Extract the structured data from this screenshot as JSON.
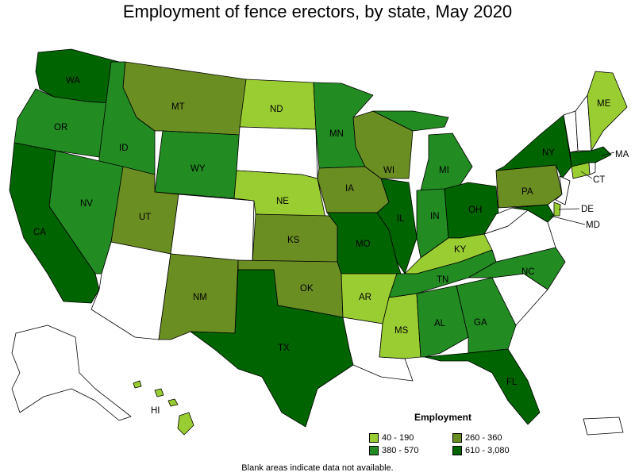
{
  "title": "Employment of fence erectors, by state, May 2020",
  "legend": {
    "title": "Employment",
    "items": [
      {
        "label": "40 - 190",
        "color": "#9acd32"
      },
      {
        "label": "260 - 360",
        "color": "#6b8e23"
      },
      {
        "label": "380 - 570",
        "color": "#228b22"
      },
      {
        "label": "610 - 3,080",
        "color": "#006400"
      }
    ]
  },
  "colors": {
    "no_data": "#ffffff",
    "c1": "#9acd32",
    "c2": "#6b8e23",
    "c3": "#228b22",
    "c4": "#006400"
  },
  "states": {
    "WA": "WA",
    "OR": "OR",
    "CA": "CA",
    "ID": "ID",
    "NV": "NV",
    "MT": "MT",
    "WY": "WY",
    "UT": "UT",
    "NM": "NM",
    "ND": "ND",
    "NE": "NE",
    "KS": "KS",
    "OK": "OK",
    "TX": "TX",
    "MN": "MN",
    "IA": "IA",
    "MO": "MO",
    "AR": "AR",
    "WI": "WI",
    "IL": "IL",
    "MS": "MS",
    "MI": "MI",
    "IN": "IN",
    "KY": "KY",
    "TN": "TN",
    "AL": "AL",
    "GA": "GA",
    "FL": "FL",
    "OH": "OH",
    "NC": "NC",
    "PA": "PA",
    "NY": "NY",
    "ME": "ME",
    "MA": "MA",
    "CT": "CT",
    "DE": "DE",
    "MD": "MD",
    "HI": "HI"
  },
  "footnote": "Blank areas indicate data not available."
}
